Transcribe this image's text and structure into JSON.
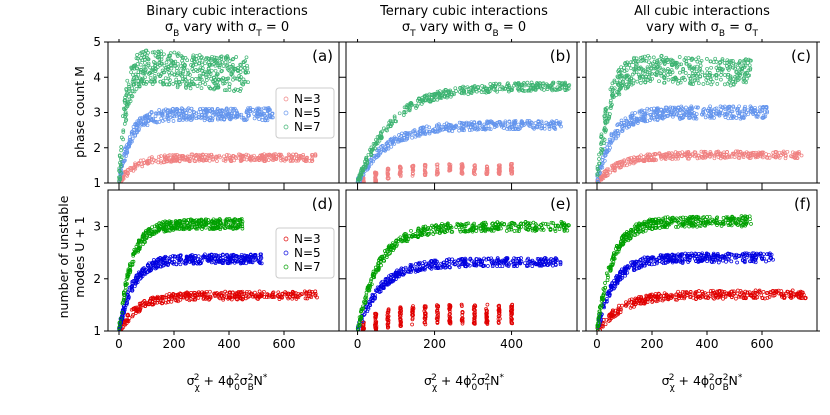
{
  "figure": {
    "columns": [
      {
        "title_line1": "Binary cubic interactions",
        "title_line2_lead": "σ",
        "title_line2_sub": "B",
        "title_line2_rest": " vary with σ",
        "title_line2_sub2": "T",
        "title_line2_end": " = 0"
      },
      {
        "title_line1": "Ternary cubic interactions",
        "title_line2_lead": "σ",
        "title_line2_sub": "T",
        "title_line2_rest": " vary with σ",
        "title_line2_sub2": "B",
        "title_line2_end": " = 0"
      },
      {
        "title_line1": "All cubic interactions",
        "title_line2_lead": "vary with σ",
        "title_line2_sub": "B",
        "title_line2_rest": " = σ",
        "title_line2_sub2": "T",
        "title_line2_end": ""
      }
    ],
    "row_labels": {
      "top": {
        "line1": "phase count M"
      },
      "bottom": {
        "line1": "number of unstable",
        "line2": "modes U + 1"
      }
    },
    "x_labels": [
      {
        "pre": "σ",
        "sub1": "χ",
        "sup1": "2",
        "mid": " + 4ϕ",
        "sub2": "0",
        "sup2": "2",
        "mid2": "σ",
        "sub3": "B",
        "sup3": "2",
        "end": "N",
        "sup4": "*"
      },
      {
        "pre": "σ",
        "sub1": "χ",
        "sup1": "2",
        "mid": " + 4ϕ",
        "sub2": "0",
        "sup2": "2",
        "mid2": "σ",
        "sub3": "T",
        "sup3": "2",
        "end": "N",
        "sup4": "*"
      },
      {
        "pre": "σ",
        "sub1": "χ",
        "sup1": "2",
        "mid": " + 4ϕ",
        "sub2": "0",
        "sup2": "2",
        "mid2": "σ",
        "sub3": "B",
        "sup3": "2",
        "end": "N",
        "sup4": "*"
      }
    ]
  },
  "chart_data": [
    {
      "id": "a",
      "label": "(a)",
      "type": "scatter",
      "row": "top",
      "col": 0,
      "xlim": [
        -40,
        800
      ],
      "ylim": [
        1,
        5
      ],
      "xticks": [
        0,
        200,
        400,
        600
      ],
      "yticks": [
        1,
        2,
        3,
        4,
        5
      ],
      "legend": {
        "placement": "right-middle",
        "entries": [
          "N=3",
          "N=5",
          "N=7"
        ]
      },
      "series": [
        {
          "name": "N=3",
          "color": "#f08080",
          "pattern": "smooth",
          "n": 360,
          "xmax": 720,
          "plateau": 1.72,
          "scale": 55,
          "spread": 0.1
        },
        {
          "name": "N=5",
          "color": "#6495ed",
          "pattern": "smooth",
          "n": 420,
          "xmax": 560,
          "plateau": 2.95,
          "scale": 40,
          "spread": 0.18
        },
        {
          "name": "N=7",
          "color": "#3cb371",
          "pattern": "hump",
          "n": 520,
          "xmax": 470,
          "plateau": 4.1,
          "scale": 25,
          "spread": 0.45
        }
      ]
    },
    {
      "id": "b",
      "label": "(b)",
      "type": "scatter",
      "row": "top",
      "col": 1,
      "xlim": [
        -30,
        570
      ],
      "ylim": [
        1,
        5
      ],
      "xticks": [
        0,
        200,
        400
      ],
      "yticks": [
        1,
        2,
        3,
        4,
        5
      ],
      "series": [
        {
          "name": "N=3",
          "color": "#f08080",
          "pattern": "columns",
          "n": 260,
          "xmax": 400,
          "plateau": 1.5,
          "scale": 60,
          "spread": 0.12
        },
        {
          "name": "N=5",
          "color": "#6495ed",
          "pattern": "smooth",
          "n": 400,
          "xmax": 530,
          "plateau": 2.65,
          "scale": 75,
          "spread": 0.12
        },
        {
          "name": "N=7",
          "color": "#3cb371",
          "pattern": "smooth",
          "n": 400,
          "xmax": 550,
          "plateau": 3.75,
          "scale": 90,
          "spread": 0.12
        }
      ]
    },
    {
      "id": "c",
      "label": "(c)",
      "type": "scatter",
      "row": "top",
      "col": 2,
      "xlim": [
        -40,
        800
      ],
      "ylim": [
        1,
        5
      ],
      "xticks": [
        0,
        200,
        400,
        600
      ],
      "yticks": [
        1,
        2,
        3,
        4,
        5
      ],
      "series": [
        {
          "name": "N=3",
          "color": "#f08080",
          "pattern": "smooth",
          "n": 360,
          "xmax": 750,
          "plateau": 1.8,
          "scale": 80,
          "spread": 0.1
        },
        {
          "name": "N=5",
          "color": "#6495ed",
          "pattern": "smooth",
          "n": 420,
          "xmax": 620,
          "plateau": 3.0,
          "scale": 55,
          "spread": 0.18
        },
        {
          "name": "N=7",
          "color": "#3cb371",
          "pattern": "hump",
          "n": 480,
          "xmax": 560,
          "plateau": 4.15,
          "scale": 45,
          "spread": 0.35
        }
      ]
    },
    {
      "id": "d",
      "label": "(d)",
      "type": "scatter",
      "row": "bottom",
      "col": 0,
      "xlim": [
        -40,
        800
      ],
      "ylim": [
        1,
        3.7
      ],
      "xticks": [
        0,
        200,
        400,
        600
      ],
      "yticks": [
        1,
        2,
        3
      ],
      "legend": {
        "placement": "right-middle",
        "entries": [
          "N=3",
          "N=5",
          "N=7"
        ]
      },
      "series": [
        {
          "name": "N=3",
          "color": "#e00000",
          "pattern": "smooth",
          "n": 380,
          "xmax": 720,
          "plateau": 1.68,
          "scale": 70,
          "spread": 0.08
        },
        {
          "name": "N=5",
          "color": "#0000e0",
          "pattern": "smooth",
          "n": 420,
          "xmax": 520,
          "plateau": 2.38,
          "scale": 50,
          "spread": 0.09
        },
        {
          "name": "N=7",
          "color": "#00a000",
          "pattern": "smooth",
          "n": 420,
          "xmax": 450,
          "plateau": 3.05,
          "scale": 45,
          "spread": 0.1
        }
      ]
    },
    {
      "id": "e",
      "label": "(e)",
      "type": "scatter",
      "row": "bottom",
      "col": 1,
      "xlim": [
        -30,
        570
      ],
      "ylim": [
        1,
        3.7
      ],
      "xticks": [
        0,
        200,
        400
      ],
      "yticks": [
        1,
        2,
        3
      ],
      "series": [
        {
          "name": "N=3",
          "color": "#e00000",
          "pattern": "columns",
          "n": 320,
          "xmax": 400,
          "plateau": 1.45,
          "scale": 50,
          "spread": 0.15
        },
        {
          "name": "N=5",
          "color": "#0000e0",
          "pattern": "smooth",
          "n": 420,
          "xmax": 530,
          "plateau": 2.32,
          "scale": 60,
          "spread": 0.08
        },
        {
          "name": "N=7",
          "color": "#00a000",
          "pattern": "smooth",
          "n": 420,
          "xmax": 550,
          "plateau": 3.0,
          "scale": 55,
          "spread": 0.09
        }
      ]
    },
    {
      "id": "f",
      "label": "(f)",
      "type": "scatter",
      "row": "bottom",
      "col": 2,
      "xlim": [
        -40,
        800
      ],
      "ylim": [
        1,
        3.7
      ],
      "xticks": [
        0,
        200,
        400,
        600
      ],
      "yticks": [
        1,
        2,
        3
      ],
      "series": [
        {
          "name": "N=3",
          "color": "#e00000",
          "pattern": "smooth",
          "n": 380,
          "xmax": 760,
          "plateau": 1.7,
          "scale": 90,
          "spread": 0.08
        },
        {
          "name": "N=5",
          "color": "#0000e0",
          "pattern": "smooth",
          "n": 420,
          "xmax": 640,
          "plateau": 2.4,
          "scale": 60,
          "spread": 0.09
        },
        {
          "name": "N=7",
          "color": "#00a000",
          "pattern": "smooth",
          "n": 420,
          "xmax": 560,
          "plateau": 3.1,
          "scale": 55,
          "spread": 0.1
        }
      ]
    }
  ]
}
